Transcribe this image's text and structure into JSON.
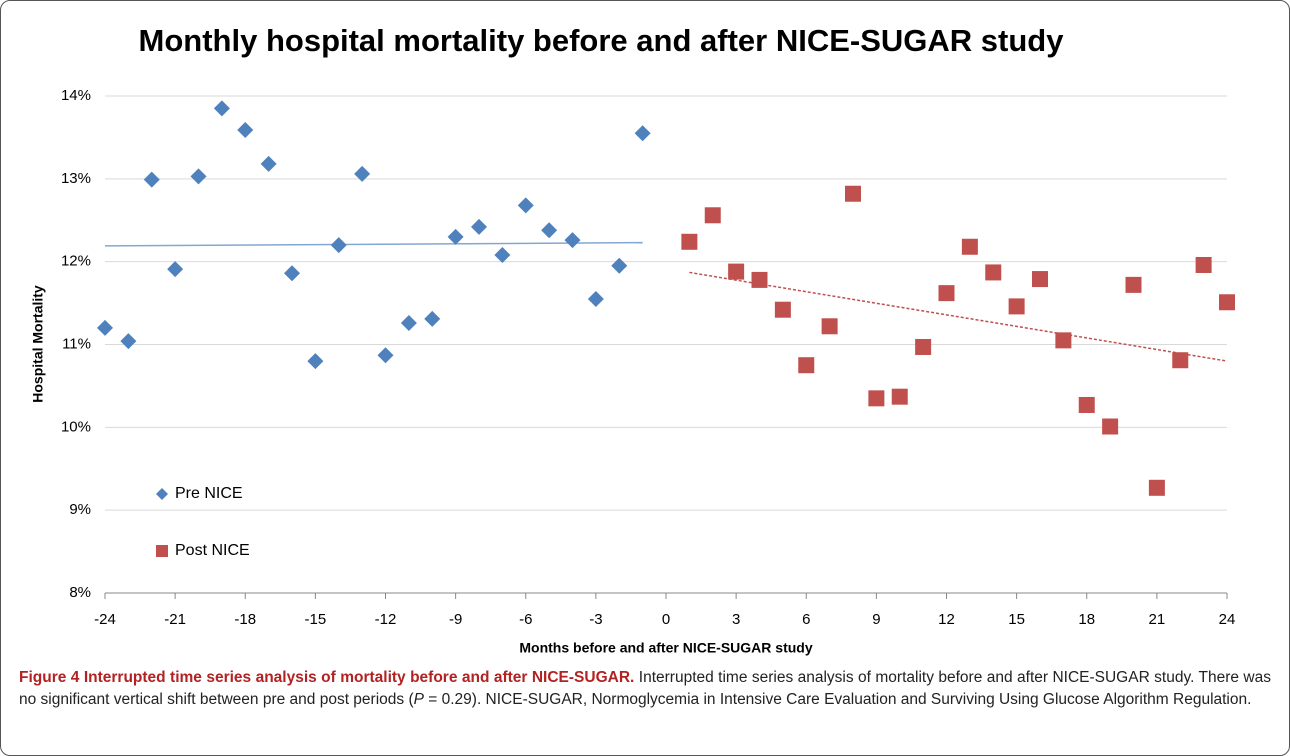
{
  "chart_data": {
    "type": "scatter",
    "title": "Monthly hospital mortality before and after NICE-SUGAR study",
    "x_label": "Months before and after NICE-SUGAR study",
    "y_label": "Hospital Mortality",
    "xlim": [
      -24,
      24
    ],
    "xticks": [
      -24,
      -21,
      -18,
      -15,
      -12,
      -9,
      -6,
      -3,
      0,
      3,
      6,
      9,
      12,
      15,
      18,
      21,
      24
    ],
    "ylim": [
      8,
      14
    ],
    "yticks": [
      {
        "value": 8,
        "label": "8%"
      },
      {
        "value": 9,
        "label": "9%"
      },
      {
        "value": 10,
        "label": "10%"
      },
      {
        "value": 11,
        "label": "11%"
      },
      {
        "value": 12,
        "label": "12%"
      },
      {
        "value": 13,
        "label": "13%"
      },
      {
        "value": 14,
        "label": "14%"
      }
    ],
    "grid": true,
    "legend": "lower left",
    "series": [
      {
        "name": "Pre NICE",
        "color": "#4f81bd",
        "marker": "diamond",
        "x": [
          -24,
          -23,
          -22,
          -21,
          -20,
          -19,
          -18,
          -17,
          -16,
          -15,
          -14,
          -13,
          -12,
          -11,
          -10,
          -9,
          -8,
          -7,
          -6,
          -5,
          -4,
          -3,
          -2,
          -1
        ],
        "values": [
          11.2,
          11.04,
          12.99,
          11.91,
          13.03,
          13.85,
          13.59,
          13.18,
          11.86,
          10.8,
          12.2,
          13.06,
          10.87,
          11.26,
          11.31,
          12.3,
          12.42,
          12.08,
          12.68,
          12.38,
          12.26,
          11.55,
          11.95,
          13.55
        ],
        "trend": {
          "x": [
            -24,
            -1
          ],
          "values": [
            12.19,
            12.23
          ]
        }
      },
      {
        "name": "Post NICE",
        "color": "#c0504d",
        "marker": "square",
        "x": [
          1,
          2,
          3,
          4,
          5,
          6,
          7,
          8,
          9,
          10,
          11,
          12,
          13,
          14,
          15,
          16,
          17,
          18,
          19,
          20,
          21,
          22,
          23,
          24
        ],
        "values": [
          12.24,
          12.56,
          11.88,
          11.78,
          11.42,
          10.75,
          11.22,
          12.82,
          10.35,
          10.37,
          10.97,
          11.62,
          12.18,
          11.87,
          11.46,
          11.79,
          11.05,
          10.27,
          10.01,
          11.72,
          9.27,
          10.81,
          11.96,
          11.51
        ],
        "trend": {
          "x": [
            1,
            24
          ],
          "values": [
            11.87,
            10.8
          ]
        }
      }
    ]
  },
  "caption": {
    "title": "Figure 4 Interrupted time series analysis of mortality before and after NICE-SUGAR.",
    "text_before": "Interrupted time series analysis of mortality before and after NICE-SUGAR study. There was no significant vertical shift between pre and post periods (",
    "italic": "P",
    "text_after": " = 0.29). NICE-SUGAR, Normoglycemia in Intensive Care Evaluation and Surviving Using Glucose Algorithm Regulation."
  }
}
